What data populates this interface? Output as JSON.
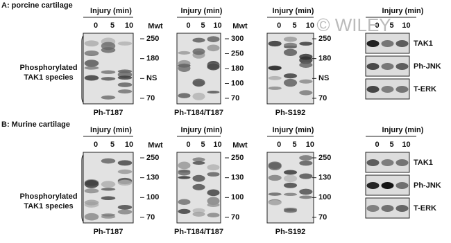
{
  "watermark": "© WILEY",
  "panels": [
    {
      "title": "A: porcine cartilage",
      "side_label": [
        "Phosphorylated",
        "TAK1 species"
      ],
      "blots": [
        {
          "header": "Injury (min)",
          "lanes": [
            "0",
            "5",
            "10"
          ],
          "mwt": "Mwt",
          "markers": [
            "250",
            "180",
            "NS",
            "70"
          ],
          "label": "Ph-T187"
        },
        {
          "header": "Injury (min)",
          "lanes": [
            "0",
            "5",
            "10"
          ],
          "mwt": "Mwt",
          "markers": [
            "300",
            "250",
            "180",
            "100",
            "70"
          ],
          "label": "Ph-T184/T187"
        },
        {
          "header": "Injury (min)",
          "lanes": [
            "0",
            "5",
            "10"
          ],
          "markers": [
            "250",
            "180",
            "NS",
            "70"
          ],
          "label": "Ph-S192"
        }
      ],
      "right": {
        "header": "Injury (min)",
        "lanes": [
          "0",
          "5",
          "10"
        ],
        "strips": [
          "TAK1",
          "Ph-JNK",
          "T-ERK"
        ]
      }
    },
    {
      "title": "B: Murine cartilage",
      "side_label": [
        "Phosphorylated",
        "TAK1 species"
      ],
      "blots": [
        {
          "header": "Injury (min)",
          "lanes": [
            "0",
            "5",
            "10"
          ],
          "mwt": "Mwt",
          "markers": [
            "250",
            "130",
            "100",
            "70"
          ],
          "label": "Ph-T187"
        },
        {
          "header": "Injury (min)",
          "lanes": [
            "0",
            "5",
            "10"
          ],
          "mwt": "Mwt",
          "markers": [
            "250",
            "130",
            "100",
            "70"
          ],
          "label": "Ph-T184/T187"
        },
        {
          "header": "Injury (min)",
          "lanes": [
            "0",
            "5",
            "10"
          ],
          "markers": [
            "250",
            "130",
            "100",
            "70"
          ],
          "label": "Ph-S192"
        }
      ],
      "right": {
        "header": "Injury (min)",
        "lanes": [
          "0",
          "5",
          "10"
        ],
        "strips": [
          "TAK1",
          "Ph-JNK",
          "T-ERK"
        ]
      }
    }
  ]
}
